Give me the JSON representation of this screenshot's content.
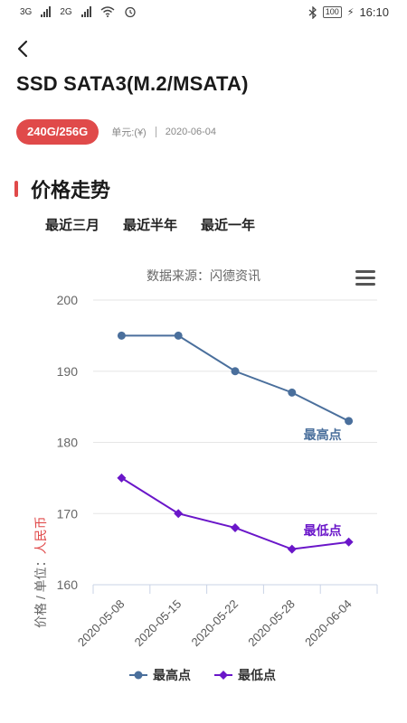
{
  "status_bar": {
    "net1": "3G",
    "net2": "2G",
    "battery": "100",
    "time": "16:10",
    "icons": [
      "signal-icon",
      "wifi-icon",
      "alarm-icon",
      "bluetooth-icon",
      "battery-icon"
    ]
  },
  "header": {
    "back_icon": "back-arrow-icon",
    "title": "SSD SATA3(M.2/MSATA)"
  },
  "meta": {
    "capacity_badge": "240G/256G",
    "unit": "单元:(¥)",
    "date": "2020-06-04"
  },
  "section": {
    "title": "价格走势"
  },
  "tabs": [
    {
      "label": "最近三月"
    },
    {
      "label": "最近半年"
    },
    {
      "label": "最近一年"
    }
  ],
  "chart": {
    "source": "数据来源：闪德资讯",
    "menu_icon": "hamburger-menu-icon",
    "ylabel_prefix": "价格 / 单位：",
    "ylabel_unit": "人民币",
    "colors": {
      "high": "#4a6f9c",
      "low": "#6a16c9",
      "unit": "#e04a4a"
    }
  },
  "chart_data": {
    "type": "line",
    "x": [
      "2020-05-08",
      "2020-05-15",
      "2020-05-22",
      "2020-05-28",
      "2020-06-04"
    ],
    "ylim": [
      160,
      200
    ],
    "yticks": [
      160,
      170,
      180,
      190,
      200
    ],
    "ylabel": "价格 / 单位：人民币",
    "grid": true,
    "legend_position": "bottom",
    "series": [
      {
        "name": "最高点",
        "values": [
          195,
          195,
          190,
          187,
          183
        ],
        "annotation": "最高点"
      },
      {
        "name": "最低点",
        "values": [
          175,
          170,
          168,
          165,
          166
        ],
        "annotation": "最低点"
      }
    ]
  }
}
